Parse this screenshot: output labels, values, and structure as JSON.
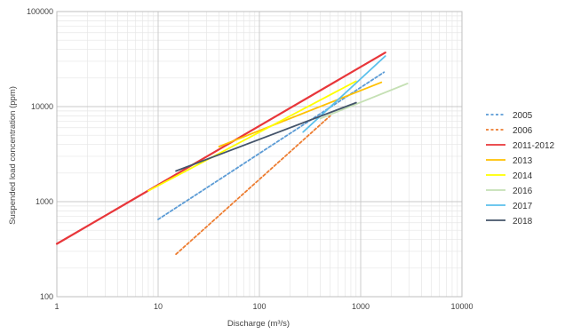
{
  "chart_data": {
    "type": "line",
    "xlabel": "Discharge (m³/s)",
    "ylabel": "Suspended load concentration (ppm)",
    "xscale": "log",
    "yscale": "log",
    "xlim": [
      1,
      10000
    ],
    "ylim": [
      100,
      100000
    ],
    "x_tick_labels": [
      "1",
      "10",
      "100",
      "1000",
      "10000"
    ],
    "y_tick_labels": [
      "100",
      "1000",
      "10000",
      "100000"
    ],
    "grid": "major and minor",
    "legend_position": "right",
    "series": [
      {
        "name": "2005",
        "color": "#5B9BD5",
        "dash": "dashed",
        "x": [
          10,
          1700
        ],
        "y": [
          650,
          23000
        ]
      },
      {
        "name": "2006",
        "color": "#ED7D31",
        "dash": "dashed",
        "x": [
          15,
          500
        ],
        "y": [
          280,
          8000
        ]
      },
      {
        "name": "2011-2012",
        "color": "#E8363A",
        "dash": "solid",
        "x": [
          1,
          1750
        ],
        "y": [
          360,
          37000
        ]
      },
      {
        "name": "2013",
        "color": "#FFC000",
        "dash": "solid",
        "x": [
          40,
          1600
        ],
        "y": [
          3800,
          18000
        ]
      },
      {
        "name": "2014",
        "color": "#FFFF00",
        "dash": "solid",
        "x": [
          8,
          900
        ],
        "y": [
          1300,
          18500
        ]
      },
      {
        "name": "2016",
        "color": "#C5E0B4",
        "dash": "solid",
        "x": [
          400,
          2900
        ],
        "y": [
          7500,
          17500
        ]
      },
      {
        "name": "2017",
        "color": "#5BC0EB",
        "dash": "solid",
        "x": [
          270,
          1750
        ],
        "y": [
          5400,
          34000
        ]
      },
      {
        "name": "2018",
        "color": "#44546A",
        "dash": "solid",
        "x": [
          15,
          900
        ],
        "y": [
          2100,
          11000
        ]
      }
    ]
  }
}
